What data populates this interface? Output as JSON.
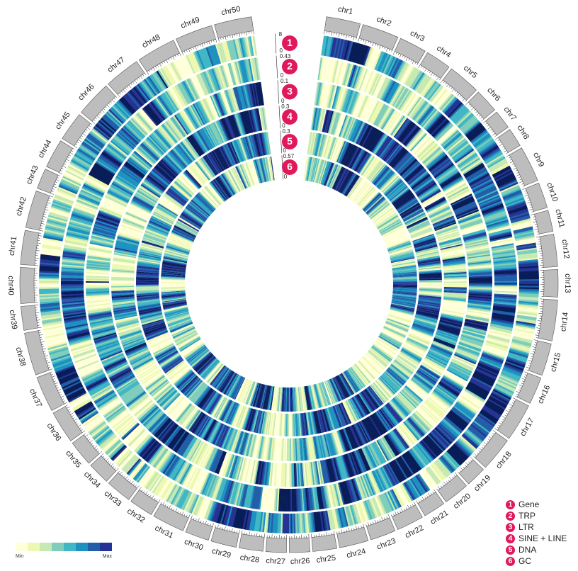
{
  "chromosomes": [
    {
      "name": "chr1",
      "length": 40
    },
    {
      "name": "chr2",
      "length": 43
    },
    {
      "name": "chr3",
      "length": 32
    },
    {
      "name": "chr4",
      "length": 30
    },
    {
      "name": "chr5",
      "length": 38
    },
    {
      "name": "chr6",
      "length": 28
    },
    {
      "name": "chr7",
      "length": 22
    },
    {
      "name": "chr8",
      "length": 22
    },
    {
      "name": "chr9",
      "length": 42
    },
    {
      "name": "chr10",
      "length": 30
    },
    {
      "name": "chr11",
      "length": 25
    },
    {
      "name": "chr12",
      "length": 38
    },
    {
      "name": "chr13",
      "length": 32
    },
    {
      "name": "chr14",
      "length": 48
    },
    {
      "name": "chr15",
      "length": 38
    },
    {
      "name": "chr16",
      "length": 32
    },
    {
      "name": "chr17",
      "length": 44
    },
    {
      "name": "chr18",
      "length": 40
    },
    {
      "name": "chr19",
      "length": 24
    },
    {
      "name": "chr20",
      "length": 30
    },
    {
      "name": "chr21",
      "length": 26
    },
    {
      "name": "chr22",
      "length": 32
    },
    {
      "name": "chr23",
      "length": 30
    },
    {
      "name": "chr24",
      "length": 34
    },
    {
      "name": "chr25",
      "length": 28
    },
    {
      "name": "chr26",
      "length": 24
    },
    {
      "name": "chr27",
      "length": 24
    },
    {
      "name": "chr28",
      "length": 28
    },
    {
      "name": "chr29",
      "length": 30
    },
    {
      "name": "chr30",
      "length": 28
    },
    {
      "name": "chr31",
      "length": 38
    },
    {
      "name": "chr32",
      "length": 28
    },
    {
      "name": "chr33",
      "length": 30
    },
    {
      "name": "chr34",
      "length": 26
    },
    {
      "name": "chr35",
      "length": 30
    },
    {
      "name": "chr36",
      "length": 38
    },
    {
      "name": "chr37",
      "length": 42
    },
    {
      "name": "chr38",
      "length": 50
    },
    {
      "name": "chr39",
      "length": 28
    },
    {
      "name": "chr40",
      "length": 42
    },
    {
      "name": "chr41",
      "length": 40
    },
    {
      "name": "chr42",
      "length": 44
    },
    {
      "name": "chr43",
      "length": 24
    },
    {
      "name": "chr44",
      "length": 34
    },
    {
      "name": "chr45",
      "length": 34
    },
    {
      "name": "chr46",
      "length": 42
    },
    {
      "name": "chr47",
      "length": 42
    },
    {
      "name": "chr48",
      "length": 46
    },
    {
      "name": "chr49",
      "length": 44
    },
    {
      "name": "chr50",
      "length": 44
    }
  ],
  "tracks": [
    {
      "number": "1",
      "name": "Gene",
      "scale_max": "8",
      "scale_min": "0"
    },
    {
      "number": "2",
      "name": "TRP",
      "scale_max": "0.43",
      "scale_min": "0"
    },
    {
      "number": "3",
      "name": "LTR",
      "scale_max": "0.1",
      "scale_min": "0"
    },
    {
      "number": "4",
      "name": "SINE + LINE",
      "scale_max": "0.3",
      "scale_min": "0"
    },
    {
      "number": "5",
      "name": "DNA",
      "scale_max": "0.3",
      "scale_min": "0"
    },
    {
      "number": "6",
      "name": "GC",
      "scale_max": "0.57",
      "scale_min": "0"
    }
  ],
  "colorbar": {
    "min_label": "Min",
    "max_label": "Max",
    "colors": [
      "#ffffd9",
      "#edf8b1",
      "#c7e9b4",
      "#7fcdbb",
      "#41b6c4",
      "#1d91c0",
      "#225ea8",
      "#253494"
    ]
  },
  "heatmap_colors": [
    "#ffffd9",
    "#edf8b1",
    "#c7e9b4",
    "#7fcdbb",
    "#41b6c4",
    "#1d91c0",
    "#225ea8",
    "#253494",
    "#081d58"
  ],
  "ideogram_color": "#bdbdbd",
  "badge_color": "#e0195a"
}
